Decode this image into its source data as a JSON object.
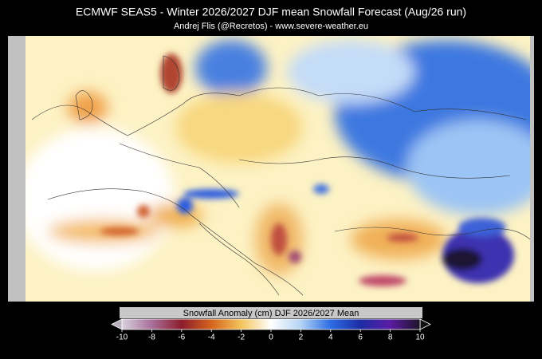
{
  "title": "ECMWF SEAS5 - Winter 2026/2027 DJF mean Snowfall Forecast (Aug/26 run)",
  "subtitle": "Andrej Flis (@Recretos) - www.severe-weather.eu",
  "colorbar": {
    "label": "Snowfall Anomaly (cm) DJF 2026/2027 Mean",
    "range": [
      -10,
      10
    ],
    "ticks": [
      -10,
      -8,
      -6,
      -4,
      -2,
      0,
      2,
      4,
      6,
      8,
      10
    ],
    "colors": [
      "#d8d0dc",
      "#a8709a",
      "#8c1c2c",
      "#d4641c",
      "#f4c45c",
      "#ffffff",
      "#b4d4f4",
      "#2c6ce4",
      "#1c2ca4",
      "#5c1ca4",
      "#1c1424"
    ]
  }
}
